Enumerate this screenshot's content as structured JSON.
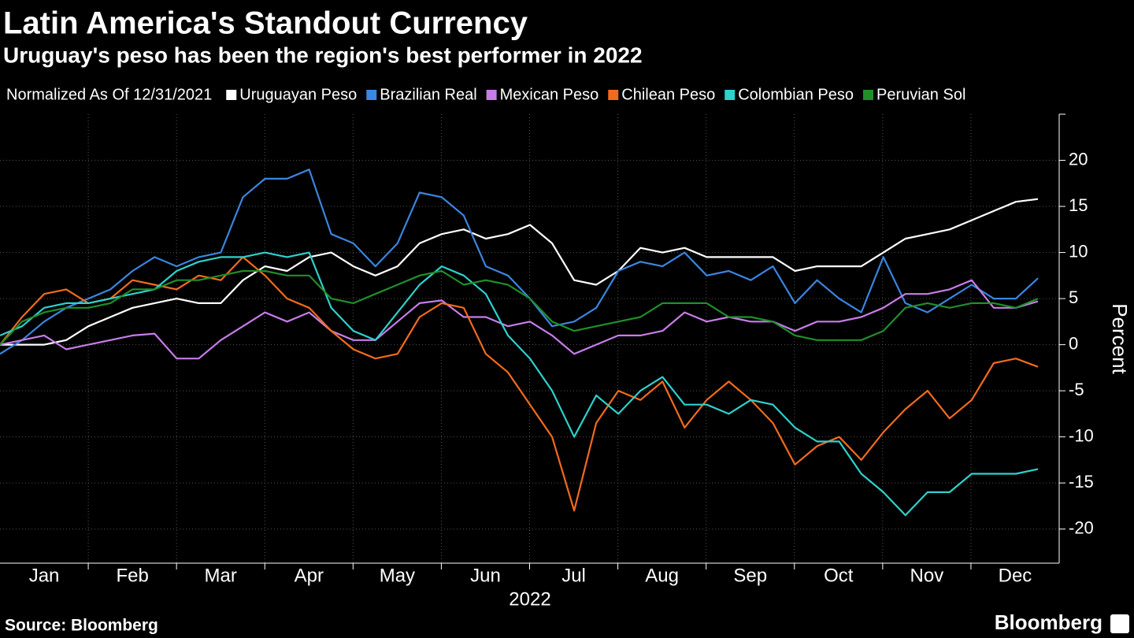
{
  "chart_data": {
    "type": "line",
    "title": "Latin America's Standout Currency",
    "subtitle": "Uruguay's peso has been the region's best performer in 2022",
    "legend_title": "Normalized As Of 12/31/2021",
    "xlabel": "2022",
    "ylabel": "Percent",
    "source": "Source: Bloomberg",
    "brand": "Bloomberg",
    "categories": [
      null,
      "Jan",
      null,
      null,
      null,
      "Feb",
      null,
      null,
      null,
      "Mar",
      null,
      null,
      null,
      "Apr",
      null,
      null,
      null,
      "May",
      null,
      null,
      null,
      "Jun",
      null,
      null,
      null,
      "Jul",
      null,
      null,
      null,
      "Aug",
      null,
      null,
      null,
      "Sep",
      null,
      null,
      null,
      "Oct",
      null,
      null,
      null,
      "Nov",
      null,
      null,
      null,
      "Dec",
      null,
      null
    ],
    "series": [
      {
        "name": "Uruguayan Peso",
        "color": "#ffffff",
        "values": [
          0,
          0,
          0,
          0.5,
          2,
          3,
          4,
          4.5,
          5,
          4.5,
          4.5,
          7,
          8.5,
          8,
          9.5,
          10,
          8.5,
          7.5,
          8.5,
          11,
          12,
          12.5,
          11.5,
          12,
          13,
          11,
          7,
          6.5,
          8,
          10.5,
          10,
          10.5,
          9.5,
          9.5,
          9.5,
          9.5,
          8,
          8.5,
          8.5,
          8.5,
          10,
          11.5,
          12,
          12.5,
          13.5,
          14.5,
          15.5,
          15.8
        ]
      },
      {
        "name": "Brazilian Real",
        "color": "#3a86e0",
        "values": [
          -1,
          0.5,
          2.5,
          4,
          5,
          6,
          8,
          9.5,
          8.5,
          9.5,
          10,
          16,
          18,
          18,
          19,
          12,
          11,
          8.5,
          11,
          16.5,
          16,
          14,
          8.5,
          7.5,
          5,
          2,
          2.5,
          4,
          8,
          9,
          8.5,
          10,
          7.5,
          8,
          7,
          8.5,
          4.5,
          7,
          5,
          3.5,
          9.5,
          4.5,
          3.5,
          5,
          6.5,
          5,
          5,
          7.2
        ]
      },
      {
        "name": "Mexican Peso",
        "color": "#c77de8",
        "values": [
          0,
          0.5,
          1,
          -0.5,
          0,
          0.5,
          1,
          1.2,
          -1.5,
          -1.5,
          0.5,
          2,
          3.5,
          2.5,
          3.5,
          1.5,
          0.5,
          0.5,
          2.5,
          4.5,
          4.8,
          3,
          3,
          2,
          2.5,
          1,
          -1,
          0,
          1,
          1,
          1.5,
          3.5,
          2.5,
          3,
          2.5,
          2.5,
          1.5,
          2.5,
          2.5,
          3,
          4,
          5.5,
          5.5,
          6,
          7,
          4,
          4,
          4.7
        ]
      },
      {
        "name": "Chilean Peso",
        "color": "#f26b1d",
        "values": [
          0,
          3,
          5.5,
          6,
          4.5,
          5,
          7,
          6.5,
          6,
          7.5,
          7,
          9.5,
          7.5,
          5,
          4,
          1.5,
          -0.5,
          -1.5,
          -1,
          3,
          4.5,
          4,
          -1,
          -3,
          -6.5,
          -10,
          -18,
          -8.5,
          -5,
          -6,
          -4,
          -9,
          -6,
          -4,
          -6,
          -8.5,
          -13,
          -11,
          -10,
          -12.5,
          -9.5,
          -7,
          -5,
          -8,
          -6,
          -2,
          -1.5,
          -2.4
        ]
      },
      {
        "name": "Colombian Peso",
        "color": "#2ed1cc",
        "values": [
          1,
          2,
          4,
          4.5,
          4.5,
          5,
          5.5,
          6,
          8,
          9,
          9.5,
          9.5,
          10,
          9.5,
          10,
          4,
          1.5,
          0.5,
          3.5,
          6.5,
          8.5,
          7.5,
          5.5,
          1,
          -1.5,
          -5,
          -10,
          -5.5,
          -7.5,
          -5,
          -3.5,
          -6.5,
          -6.5,
          -7.5,
          -6,
          -6.5,
          -9,
          -10.5,
          -10.5,
          -14,
          -16,
          -18.5,
          -16,
          -16,
          -14,
          -14,
          -14,
          -13.5
        ]
      },
      {
        "name": "Peruvian Sol",
        "color": "#1f8f2a",
        "values": [
          0,
          2.5,
          3.5,
          4,
          4,
          4.5,
          6,
          6,
          7,
          7,
          7.5,
          8,
          8,
          7.5,
          7.5,
          5,
          4.5,
          5.5,
          6.5,
          7.5,
          8,
          6.5,
          7,
          6.5,
          5,
          2.5,
          1.5,
          2,
          2.5,
          3,
          4.5,
          4.5,
          4.5,
          3,
          3,
          2.5,
          1,
          0.5,
          0.5,
          0.5,
          1.5,
          4,
          4.5,
          4,
          4.5,
          4.5,
          4,
          5
        ]
      }
    ],
    "ylim": [
      -23.7,
      25
    ],
    "yticks": [
      -20,
      -15,
      -10,
      -5,
      0,
      5,
      10,
      15,
      20
    ],
    "grid": true
  }
}
